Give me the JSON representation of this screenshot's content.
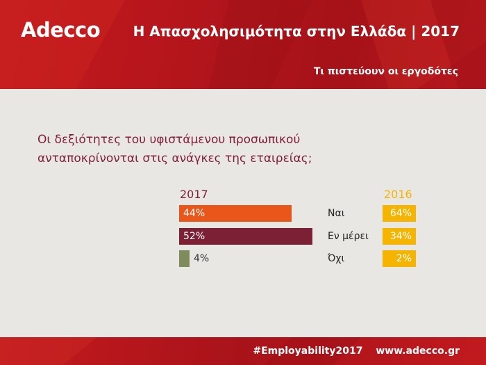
{
  "header": {
    "logo": "Adecco",
    "title": "Η Απασχολησιμότητα στην Ελλάδα | 2017",
    "subtitle": "Τι πιστεύουν οι εργοδότες"
  },
  "question": {
    "line1": "Οι δεξιότητες του υφιστάμενου προσωπικού",
    "line2": "ανταποκρίνονται στις ανάγκες της εταιρείας;"
  },
  "colors": {
    "header_red": "#b3151b",
    "bar_nai_2017": "#e8561a",
    "bar_en_merei_2017": "#7b2035",
    "bar_oxi_2017": "#7f8b5d",
    "bar_2016": "#f5b400",
    "question_text": "#7e1e37"
  },
  "chart_data": {
    "type": "bar",
    "orientation": "horizontal",
    "categories": [
      "Ναι",
      "Εν μέρει",
      "Όχι"
    ],
    "series": [
      {
        "name": "2017",
        "values": [
          44,
          52,
          4
        ],
        "labels": [
          "44%",
          "52%",
          "4%"
        ]
      },
      {
        "name": "2016",
        "values": [
          64,
          34,
          2
        ],
        "labels": [
          "64%",
          "34%",
          "2%"
        ]
      }
    ],
    "unit": "%"
  },
  "footer": {
    "hashtag": "#Employability2017",
    "url": "www.adecco.gr"
  }
}
